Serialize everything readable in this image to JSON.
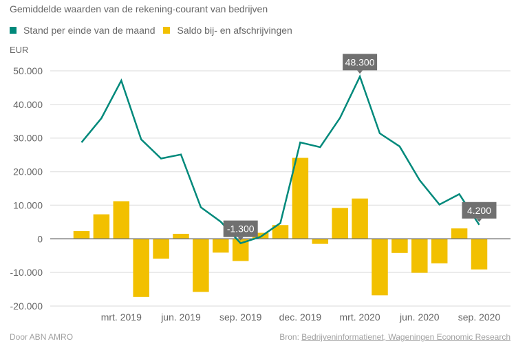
{
  "chart_data": {
    "type": "bar",
    "title": "Gemiddelde waarden van de rekening-courant van bedrijven",
    "unit_label": "EUR",
    "ylabel": "EUR",
    "xlabel": "",
    "ylim": [
      -20000,
      50000
    ],
    "yticks": [
      50000,
      40000,
      30000,
      20000,
      10000,
      0,
      -10000,
      -20000
    ],
    "ytick_labels": [
      "50.000",
      "40.000",
      "30.000",
      "20.000",
      "10.000",
      "0",
      "-10.000",
      "-20.000"
    ],
    "grid": true,
    "legend_position": "top-left",
    "categories": [
      "jan. 2019",
      "feb. 2019",
      "mrt. 2019",
      "apr. 2019",
      "mei 2019",
      "jun. 2019",
      "jul. 2019",
      "aug. 2019",
      "sep. 2019",
      "okt. 2019",
      "nov. 2019",
      "dec. 2019",
      "jan. 2020",
      "feb. 2020",
      "mrt. 2020",
      "apr. 2020",
      "mei 2020",
      "jun. 2020",
      "jul. 2020",
      "aug. 2020",
      "sep. 2020"
    ],
    "xtick_labels": [
      {
        "index": 2,
        "label": "mrt. 2019"
      },
      {
        "index": 5,
        "label": "jun. 2019"
      },
      {
        "index": 8,
        "label": "sep. 2019"
      },
      {
        "index": 11,
        "label": "dec. 2019"
      },
      {
        "index": 14,
        "label": "mrt. 2020"
      },
      {
        "index": 17,
        "label": "jun. 2020"
      },
      {
        "index": 20,
        "label": "sep. 2020"
      }
    ],
    "series": [
      {
        "name": "Stand per einde van de maand",
        "type": "line",
        "color": "#00897b",
        "values": [
          28700,
          35900,
          47100,
          29600,
          23900,
          25100,
          9400,
          5100,
          -1300,
          600,
          4700,
          28700,
          27300,
          36000,
          48300,
          31400,
          27500,
          17500,
          10200,
          13300,
          4200
        ]
      },
      {
        "name": "Saldo bij- en afschrijvingen",
        "type": "bar",
        "color": "#f2c000",
        "values": [
          2300,
          7300,
          11200,
          -17300,
          -5900,
          1500,
          -15800,
          -4100,
          -6600,
          1800,
          4100,
          24100,
          -1500,
          9200,
          12000,
          -16800,
          -4200,
          -10100,
          -7300,
          3100,
          -9100
        ]
      }
    ],
    "annotations": [
      {
        "series": 0,
        "index": 8,
        "label": "-1.300"
      },
      {
        "series": 0,
        "index": 14,
        "label": "48.300"
      },
      {
        "series": 0,
        "index": 20,
        "label": "4.200"
      }
    ]
  },
  "footer": {
    "credit": "Door ABN AMRO",
    "source_prefix": "Bron:",
    "source_link": "Bedrijveninformatienet, Wageningen Economic Research"
  }
}
